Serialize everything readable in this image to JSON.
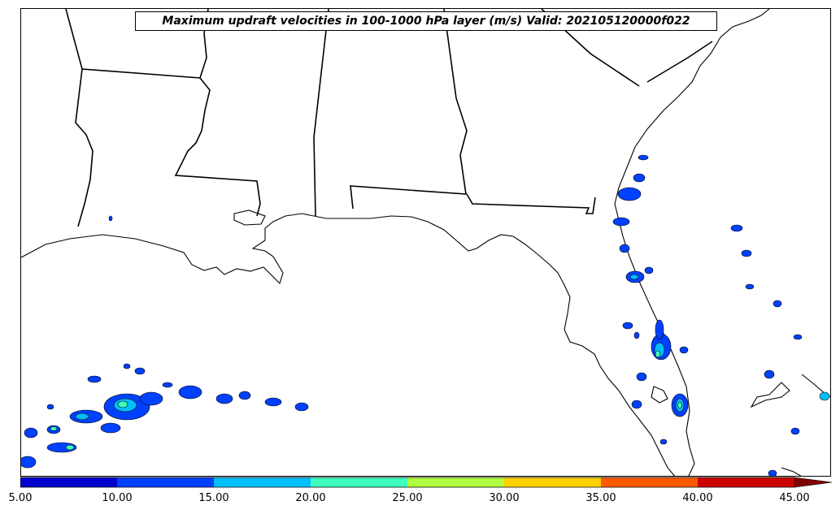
{
  "title": "Maximum updraft velocities in 100-1000 hPa layer (m/s) Valid: 202105120000f022",
  "colorbar": {
    "ticks": [
      "5.00",
      "10.00",
      "15.00",
      "20.00",
      "25.00",
      "30.00",
      "35.00",
      "40.00",
      "45.00"
    ],
    "colors": [
      "#0000cd",
      "#0040ff",
      "#00bfff",
      "#40ffbf",
      "#b0ff40",
      "#ffd000",
      "#ff5a00",
      "#cc0000",
      "#800000"
    ],
    "extend": "max"
  },
  "map": {
    "projection": "Lambert conformal",
    "region": "U.S. Gulf Coast and Florida",
    "coastline_color": "#000000",
    "state_border_color": "#000000"
  }
}
